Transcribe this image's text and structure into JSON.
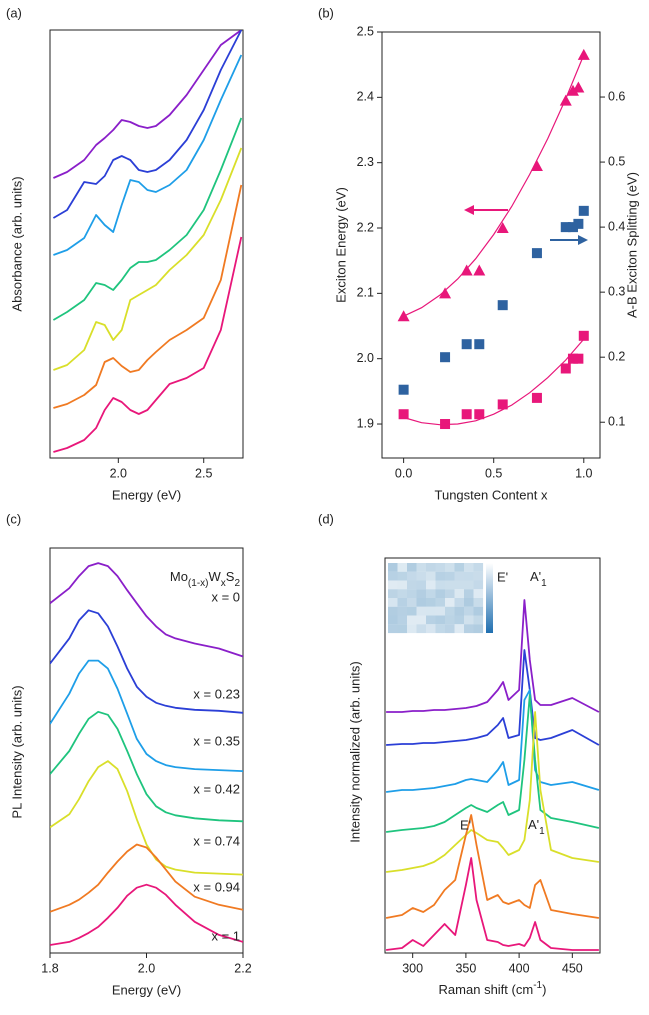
{
  "chart_data": [
    {
      "type": "line",
      "panel_label": "(a)",
      "x_label": "Energy (eV)",
      "y_label": "Absorbance (arb. units)",
      "xlim": [
        1.6,
        2.73
      ],
      "xticks": [
        {
          "value": 2,
          "label": "2.0"
        },
        2.5
      ],
      "ylim": [
        0,
        428
      ],
      "x": [
        1.62,
        1.7,
        1.8,
        1.87,
        1.92,
        1.97,
        2.02,
        2.07,
        2.12,
        2.17,
        2.22,
        2.3,
        2.4,
        2.5,
        2.6,
        2.72
      ],
      "series": [
        {
          "color": "#8a1fc9",
          "values": [
            280,
            286,
            298,
            313,
            320,
            328,
            338,
            336,
            332,
            330,
            332,
            343,
            363,
            388,
            413,
            428
          ]
        },
        {
          "color": "#2b3fd6",
          "values": [
            240,
            248,
            276,
            274,
            282,
            298,
            302,
            298,
            288,
            286,
            288,
            298,
            318,
            348,
            388,
            428
          ]
        },
        {
          "color": "#1e9ee8",
          "values": [
            203,
            208,
            220,
            243,
            233,
            226,
            253,
            278,
            276,
            268,
            266,
            273,
            288,
            318,
            358,
            403
          ]
        },
        {
          "color": "#1fc47e",
          "values": [
            138,
            146,
            158,
            175,
            173,
            168,
            178,
            190,
            196,
            196,
            198,
            208,
            223,
            248,
            288,
            340
          ]
        },
        {
          "color": "#d9df2a",
          "values": [
            88,
            93,
            108,
            136,
            133,
            118,
            128,
            158,
            163,
            168,
            173,
            188,
            203,
            223,
            258,
            310
          ]
        },
        {
          "color": "#f07a22",
          "values": [
            50,
            54,
            63,
            73,
            96,
            100,
            92,
            86,
            88,
            98,
            106,
            118,
            128,
            140,
            178,
            273
          ]
        },
        {
          "color": "#e8177a",
          "values": [
            6,
            10,
            18,
            30,
            48,
            60,
            56,
            48,
            44,
            48,
            58,
            74,
            80,
            90,
            128,
            221
          ]
        }
      ]
    },
    {
      "type": "scatter",
      "panel_label": "(b)",
      "x_label": "Tungsten Content x",
      "y_label": "Exciton Energy (eV)",
      "y2_label": "A-B Exciton Splitting (eV)",
      "xlim": [
        -0.12,
        1.09
      ],
      "xticks": [
        {
          "value": 0,
          "label": "0.0"
        },
        0.5,
        {
          "value": 1,
          "label": "1.0"
        }
      ],
      "ylim": [
        1.848,
        2.5
      ],
      "yticks": [
        1.9,
        {
          "value": 2,
          "label": "2.0"
        },
        2.1,
        2.2,
        2.3,
        2.4,
        2.5
      ],
      "y2lim": [
        0.045,
        0.7
      ],
      "y2ticks": [
        0.1,
        0.2,
        0.3,
        0.4,
        0.5,
        0.6
      ],
      "series": [
        {
          "color": "#e8177a",
          "marker": "triangle",
          "x": [
            0,
            0.23,
            0.35,
            0.42,
            0.55,
            0.74,
            0.9,
            0.94,
            0.97,
            1.0
          ],
          "values": [
            2.065,
            2.1,
            2.135,
            2.135,
            2.2,
            2.295,
            2.395,
            2.41,
            2.415,
            2.465
          ]
        },
        {
          "color": "#e8177a",
          "marker": "square",
          "x": [
            0,
            0.23,
            0.35,
            0.42,
            0.55,
            0.74,
            0.9,
            0.94,
            0.97,
            1.0
          ],
          "values": [
            1.915,
            1.9,
            1.915,
            1.915,
            1.93,
            1.94,
            1.985,
            2.0,
            2.0,
            2.035
          ]
        },
        {
          "color": "#2e62a0",
          "marker": "square",
          "axis": "y2",
          "x": [
            0,
            0.23,
            0.35,
            0.42,
            0.55,
            0.74,
            0.9,
            0.94,
            0.97,
            1.0
          ],
          "values": [
            0.15,
            0.2,
            0.22,
            0.22,
            0.28,
            0.36,
            0.4,
            0.4,
            0.405,
            0.425
          ]
        },
        {
          "color": "#e8177a",
          "line": true,
          "x": [
            0,
            0.1,
            0.2,
            0.3,
            0.4,
            0.5,
            0.6,
            0.7,
            0.8,
            0.9,
            1.0
          ],
          "values": [
            2.065,
            2.078,
            2.097,
            2.122,
            2.153,
            2.19,
            2.233,
            2.282,
            2.337,
            2.398,
            2.465
          ]
        },
        {
          "color": "#e8177a",
          "line": true,
          "x": [
            0,
            0.1,
            0.2,
            0.3,
            0.4,
            0.5,
            0.6,
            0.7,
            0.8,
            0.9,
            1.0
          ],
          "values": [
            1.91,
            1.902,
            1.899,
            1.9,
            1.905,
            1.915,
            1.929,
            1.948,
            1.971,
            1.998,
            2.03
          ]
        }
      ]
    },
    {
      "type": "line",
      "panel_label": "(c)",
      "x_label": "Energy (eV)",
      "y_label": "PL Intensity (arb. units)",
      "annotations": [
        [
          "Mo",
          "(1-x)",
          "W",
          "x",
          "S",
          "2"
        ]
      ],
      "xlim": [
        1.8,
        2.2
      ],
      "xticks": [
        1.8,
        {
          "value": 2,
          "label": "2.0"
        },
        2.2
      ],
      "ylim": [
        0,
        403
      ],
      "x": [
        1.8,
        1.84,
        1.86,
        1.88,
        1.9,
        1.92,
        1.94,
        1.96,
        1.98,
        2.0,
        2.02,
        2.04,
        2.06,
        2.1,
        2.15,
        2.2
      ],
      "series": [
        {
          "name": "x = 0",
          "color": "#8a1fc9",
          "values": [
            348,
            363,
            375,
            385,
            388,
            385,
            375,
            361,
            348,
            335,
            325,
            317,
            313,
            308,
            303,
            295
          ]
        },
        {
          "name": "x = 0.23",
          "color": "#2b3fd6",
          "values": [
            288,
            313,
            331,
            341,
            338,
            325,
            305,
            283,
            265,
            255,
            249,
            246,
            244,
            242,
            241,
            239
          ]
        },
        {
          "name": "x = 0.35",
          "color": "#1e9ee8",
          "values": [
            228,
            258,
            278,
            291,
            291,
            283,
            263,
            238,
            213,
            198,
            191,
            187,
            185,
            183,
            182,
            181
          ]
        },
        {
          "name": "x = 0.42",
          "color": "#1fc47e",
          "values": [
            178,
            201,
            218,
            233,
            240,
            237,
            223,
            201,
            178,
            158,
            146,
            140,
            137,
            134,
            132,
            131
          ]
        },
        {
          "name": "x = 0.74",
          "color": "#d9df2a",
          "values": [
            125,
            138,
            153,
            171,
            185,
            191,
            183,
            161,
            133,
            108,
            93,
            86,
            83,
            80,
            79,
            78
          ]
        },
        {
          "name": "x = 0.94",
          "color": "#f07a22",
          "values": [
            41,
            48,
            53,
            60,
            68,
            80,
            91,
            101,
            108,
            105,
            95,
            83,
            71,
            56,
            48,
            43
          ]
        },
        {
          "name": "x = 1",
          "color": "#e8177a",
          "values": [
            8,
            11,
            15,
            20,
            26,
            35,
            45,
            57,
            65,
            68,
            65,
            58,
            48,
            31,
            18,
            11
          ]
        }
      ]
    },
    {
      "type": "line",
      "panel_label": "(d)",
      "x_label": [
        "Raman shift (cm",
        "-1",
        ")"
      ],
      "y_label": "Intensity normalized (arb. units)",
      "annotations": [
        "E'",
        [
          "A'",
          "1"
        ],
        "E'",
        [
          "A'",
          "1"
        ]
      ],
      "xlim": [
        274,
        476
      ],
      "xticks": [
        300,
        350,
        400,
        450
      ],
      "ylim": [
        0,
        395
      ],
      "x": [
        275,
        290,
        300,
        310,
        320,
        330,
        340,
        350,
        355,
        360,
        370,
        380,
        385,
        390,
        400,
        405,
        410,
        415,
        420,
        430,
        450,
        475
      ],
      "series": [
        {
          "color": "#8a1fc9",
          "values": [
            241,
            241,
            242,
            242,
            243,
            243,
            244,
            245,
            246,
            247,
            251,
            263,
            271,
            253,
            263,
            353,
            293,
            253,
            248,
            248,
            255,
            241
          ]
        },
        {
          "color": "#2b3fd6",
          "values": [
            208,
            209,
            209,
            210,
            210,
            211,
            212,
            213,
            214,
            215,
            218,
            228,
            235,
            215,
            218,
            303,
            263,
            215,
            213,
            215,
            223,
            208
          ]
        },
        {
          "color": "#1e9ee8",
          "values": [
            161,
            163,
            163,
            164,
            165,
            167,
            169,
            173,
            174,
            173,
            171,
            183,
            191,
            168,
            173,
            253,
            263,
            183,
            171,
            168,
            171,
            163
          ]
        },
        {
          "color": "#1fc47e",
          "values": [
            121,
            123,
            124,
            125,
            127,
            131,
            138,
            145,
            148,
            145,
            141,
            148,
            151,
            138,
            143,
            193,
            258,
            193,
            143,
            135,
            131,
            125
          ]
        },
        {
          "color": "#d9df2a",
          "values": [
            81,
            83,
            85,
            87,
            91,
            98,
            108,
            118,
            123,
            120,
            113,
            111,
            105,
            98,
            103,
            113,
            153,
            241,
            163,
            103,
            95,
            91
          ]
        },
        {
          "color": "#f07a22",
          "values": [
            35,
            38,
            45,
            41,
            48,
            63,
            73,
            118,
            138,
            108,
            53,
            58,
            51,
            49,
            53,
            48,
            45,
            68,
            73,
            43,
            39,
            35
          ]
        },
        {
          "color": "#e8177a",
          "values": [
            3,
            5,
            13,
            7,
            18,
            29,
            18,
            68,
            95,
            53,
            13,
            11,
            8,
            7,
            9,
            7,
            15,
            31,
            13,
            5,
            3,
            3
          ]
        }
      ]
    }
  ]
}
